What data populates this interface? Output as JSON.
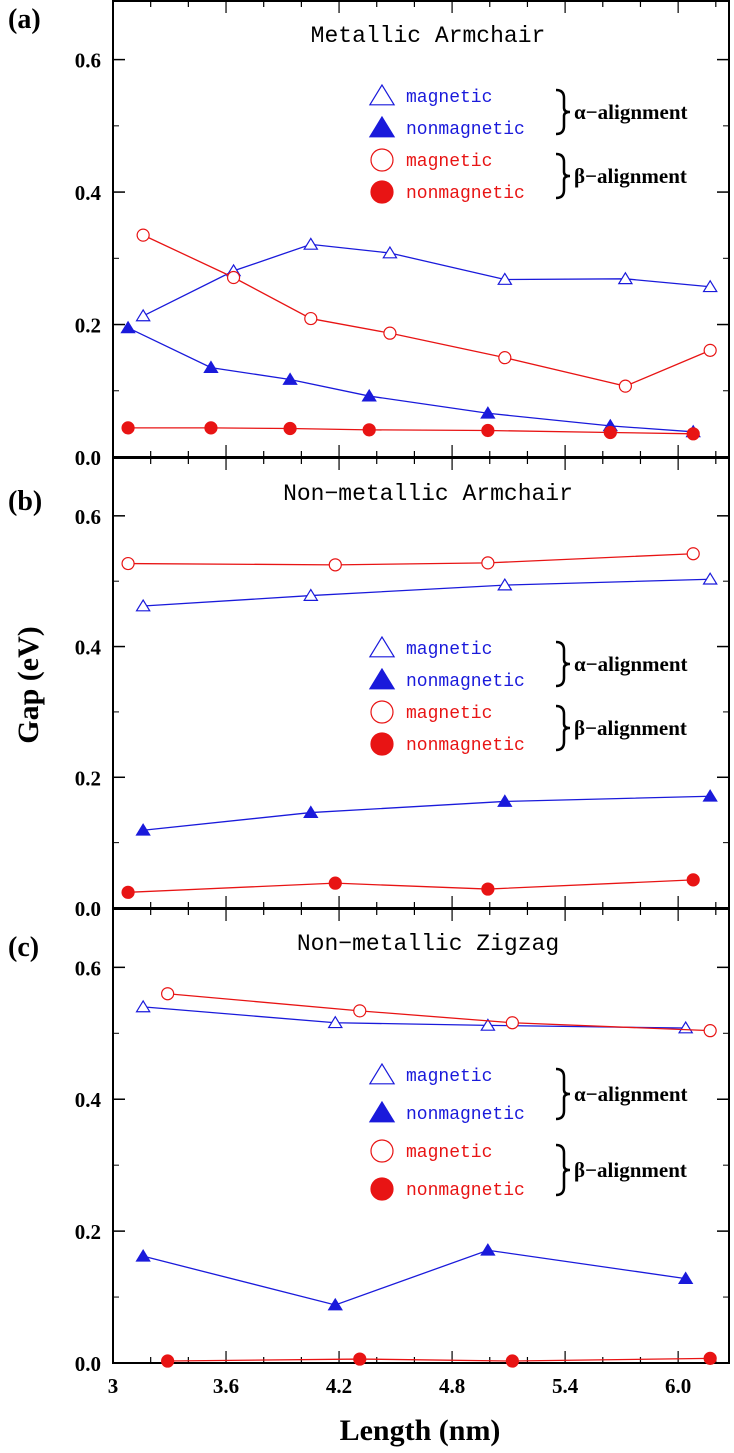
{
  "figure": {
    "ylabel": "Gap (eV)",
    "xlabel": "Length (nm)",
    "x_ticks": [
      "3",
      "3.6",
      "4.2",
      "4.8",
      "5.4",
      "6.0"
    ],
    "y_ticks": [
      "0.0",
      "0.2",
      "0.4",
      "0.6"
    ]
  },
  "legend_text": {
    "magnetic": "magnetic",
    "nonmagnetic": "nonmagnetic",
    "alpha": "α−alignment",
    "beta": "β−alignment"
  },
  "colors": {
    "alpha": "#1a1adb",
    "beta": "#e81414"
  },
  "chart_data": [
    {
      "type": "line",
      "panel_label": "(a)",
      "title": "Metallic Armchair",
      "xlim": [
        3.0,
        6.27
      ],
      "ylim": [
        0.0,
        0.69
      ],
      "series": [
        {
          "name": "magnetic",
          "group": "α−alignment",
          "marker": "triangle-open",
          "color": "#1a1adb",
          "x": [
            3.16,
            3.64,
            4.05,
            4.47,
            5.08,
            5.72,
            6.17
          ],
          "y": [
            0.213,
            0.281,
            0.321,
            0.308,
            0.268,
            0.269,
            0.257
          ]
        },
        {
          "name": "nonmagnetic",
          "group": "α−alignment",
          "marker": "triangle-filled",
          "color": "#1a1adb",
          "x": [
            3.08,
            3.52,
            3.94,
            4.36,
            4.99,
            5.64,
            6.08
          ],
          "y": [
            0.195,
            0.135,
            0.117,
            0.092,
            0.066,
            0.047,
            0.038
          ]
        },
        {
          "name": "magnetic",
          "group": "β−alignment",
          "marker": "circle-open",
          "color": "#e81414",
          "x": [
            3.16,
            3.64,
            4.05,
            4.47,
            5.08,
            5.72,
            6.17
          ],
          "y": [
            0.335,
            0.271,
            0.209,
            0.187,
            0.15,
            0.107,
            0.161
          ]
        },
        {
          "name": "nonmagnetic",
          "group": "β−alignment",
          "marker": "circle-filled",
          "color": "#e81414",
          "x": [
            3.08,
            3.52,
            3.94,
            4.36,
            4.99,
            5.64,
            6.08
          ],
          "y": [
            0.044,
            0.044,
            0.043,
            0.041,
            0.04,
            0.037,
            0.035
          ]
        }
      ]
    },
    {
      "type": "line",
      "panel_label": "(b)",
      "title": "Non−metallic Armchair",
      "xlim": [
        3.0,
        6.27
      ],
      "ylim": [
        0.0,
        0.69
      ],
      "series": [
        {
          "name": "magnetic",
          "group": "α−alignment",
          "marker": "triangle-open",
          "color": "#1a1adb",
          "x": [
            3.16,
            4.05,
            5.08,
            6.17
          ],
          "y": [
            0.462,
            0.478,
            0.494,
            0.503
          ]
        },
        {
          "name": "nonmagnetic",
          "group": "α−alignment",
          "marker": "triangle-filled",
          "color": "#1a1adb",
          "x": [
            3.16,
            4.05,
            5.08,
            6.17
          ],
          "y": [
            0.119,
            0.146,
            0.163,
            0.171
          ]
        },
        {
          "name": "magnetic",
          "group": "β−alignment",
          "marker": "circle-open",
          "color": "#e81414",
          "x": [
            3.08,
            4.18,
            4.99,
            6.08
          ],
          "y": [
            0.527,
            0.525,
            0.528,
            0.542
          ]
        },
        {
          "name": "nonmagnetic",
          "group": "β−alignment",
          "marker": "circle-filled",
          "color": "#e81414",
          "x": [
            3.08,
            4.18,
            4.99,
            6.08
          ],
          "y": [
            0.024,
            0.038,
            0.029,
            0.043
          ]
        }
      ]
    },
    {
      "type": "line",
      "panel_label": "(c)",
      "title": "Non−metallic Zigzag",
      "xlim": [
        3.0,
        6.27
      ],
      "ylim": [
        0.0,
        0.69
      ],
      "series": [
        {
          "name": "magnetic",
          "group": "α−alignment",
          "marker": "triangle-open",
          "color": "#1a1adb",
          "x": [
            3.16,
            4.18,
            4.99,
            6.04
          ],
          "y": [
            0.54,
            0.516,
            0.512,
            0.508
          ]
        },
        {
          "name": "nonmagnetic",
          "group": "α−alignment",
          "marker": "triangle-filled",
          "color": "#1a1adb",
          "x": [
            3.16,
            4.18,
            4.99,
            6.04
          ],
          "y": [
            0.162,
            0.088,
            0.171,
            0.128
          ]
        },
        {
          "name": "magnetic",
          "group": "β−alignment",
          "marker": "circle-open",
          "color": "#e81414",
          "x": [
            3.29,
            4.31,
            5.12,
            6.17
          ],
          "y": [
            0.56,
            0.534,
            0.516,
            0.504
          ]
        },
        {
          "name": "nonmagnetic",
          "group": "β−alignment",
          "marker": "circle-filled",
          "color": "#e81414",
          "x": [
            3.29,
            4.31,
            5.12,
            6.17
          ],
          "y": [
            0.003,
            0.006,
            0.003,
            0.007
          ]
        }
      ]
    }
  ]
}
